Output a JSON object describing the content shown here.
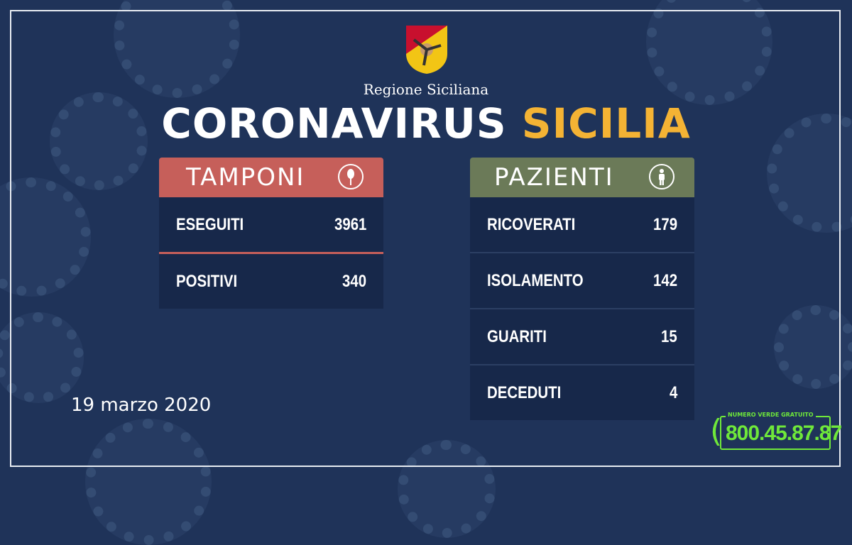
{
  "logo_text": "Regione Siciliana",
  "title": {
    "part1": "CORONAVIRUS",
    "part2": "SICILIA"
  },
  "tamponi": {
    "header": "TAMPONI",
    "icon": "swab-icon",
    "color": "#c65f5a",
    "rows": [
      {
        "label": "ESEGUITI",
        "value": "3961"
      },
      {
        "label": "POSITIVI",
        "value": "340"
      }
    ]
  },
  "pazienti": {
    "header": "PAZIENTI",
    "icon": "person-icon",
    "color": "#6b7a58",
    "rows": [
      {
        "label": "RICOVERATI",
        "value": "179"
      },
      {
        "label": "ISOLAMENTO",
        "value": "142"
      },
      {
        "label": "GUARITI",
        "value": "15"
      },
      {
        "label": "DECEDUTI",
        "value": "4"
      }
    ]
  },
  "date": "19 marzo 2020",
  "hotline": {
    "label": "NUMERO VERDE GRATUITO",
    "number": "800.45.87.87",
    "color": "#6fe83a"
  }
}
